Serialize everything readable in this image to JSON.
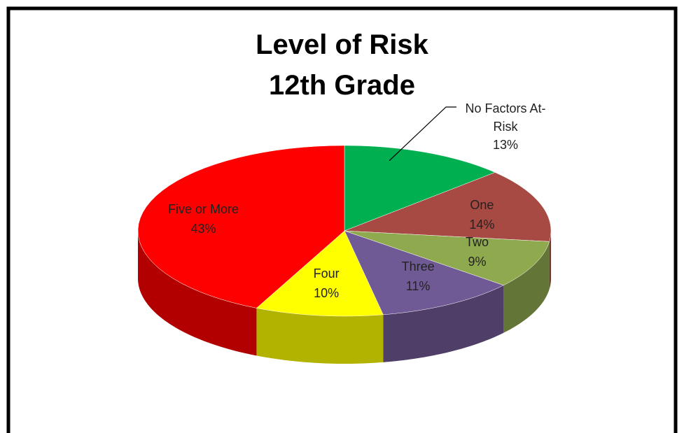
{
  "chart_data": {
    "type": "pie",
    "title": "Level of Risk",
    "subtitle": "12th Grade",
    "categories": [
      "No Factors At-Risk",
      "One",
      "Two",
      "Three",
      "Four",
      "Five or More"
    ],
    "values": [
      13,
      14,
      9,
      11,
      10,
      43
    ],
    "value_labels": [
      "13%",
      "14%",
      "9%",
      "11%",
      "10%",
      "43%"
    ],
    "colors": [
      "#00b050",
      "#a64a43",
      "#8fa94f",
      "#705a95",
      "#ffff00",
      "#ff0000"
    ]
  }
}
